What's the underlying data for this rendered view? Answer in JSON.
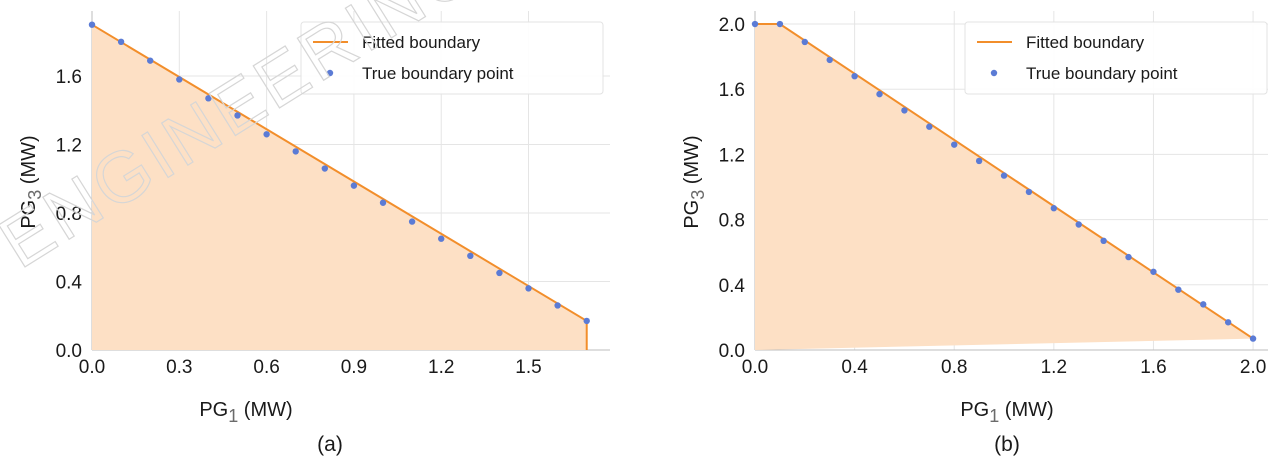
{
  "watermark": "ENGINEERING",
  "colors": {
    "fill": "#fde0c5",
    "line": "#f28e2b",
    "point": "#5b7bd5",
    "grid": "#e5e5e5",
    "axis": "#bdbdbd"
  },
  "chart_data": [
    {
      "type": "area",
      "caption": "(a)",
      "xlabel": "PG",
      "xlabel_sub": "1",
      "xlabel_unit": " (MW)",
      "ylabel": "PG",
      "ylabel_sub": "3",
      "ylabel_unit": " (MW)",
      "xlim": [
        0,
        1.78
      ],
      "ylim": [
        0,
        1.98
      ],
      "xticks": [
        "0.0",
        "0.3",
        "0.6",
        "0.9",
        "1.2",
        "1.5"
      ],
      "yticks": [
        "0.0",
        "0.4",
        "0.8",
        "1.2",
        "1.6"
      ],
      "grid": true,
      "legend_position": "top-right",
      "series": [
        {
          "name": "Fitted boundary",
          "x": [
            0.0,
            1.7,
            1.7
          ],
          "y": [
            1.9,
            0.17,
            0.0
          ]
        },
        {
          "name": "True boundary point",
          "x": [
            0.0,
            0.1,
            0.2,
            0.3,
            0.4,
            0.5,
            0.6,
            0.7,
            0.8,
            0.9,
            1.0,
            1.1,
            1.2,
            1.3,
            1.4,
            1.5,
            1.6,
            1.7
          ],
          "y": [
            1.9,
            1.8,
            1.69,
            1.58,
            1.47,
            1.37,
            1.26,
            1.16,
            1.06,
            0.96,
            0.86,
            0.75,
            0.65,
            0.55,
            0.45,
            0.36,
            0.26,
            0.17
          ]
        }
      ]
    },
    {
      "type": "area",
      "caption": "(b)",
      "xlabel": "PG",
      "xlabel_sub": "1",
      "xlabel_unit": " (MW)",
      "ylabel": "PG",
      "ylabel_sub": "3",
      "ylabel_unit": " (MW)",
      "xlim": [
        0,
        2.06
      ],
      "ylim": [
        0,
        2.08
      ],
      "xticks": [
        "0.0",
        "0.4",
        "0.8",
        "1.2",
        "1.6",
        "2.0"
      ],
      "yticks": [
        "0.0",
        "0.4",
        "0.8",
        "1.2",
        "1.6",
        "2.0"
      ],
      "grid": true,
      "legend_position": "top-right",
      "series": [
        {
          "name": "Fitted boundary",
          "x": [
            0.0,
            0.1,
            2.0
          ],
          "y": [
            2.0,
            2.0,
            0.07
          ]
        },
        {
          "name": "True boundary point",
          "x": [
            0.0,
            0.1,
            0.2,
            0.3,
            0.4,
            0.5,
            0.6,
            0.7,
            0.8,
            0.9,
            1.0,
            1.1,
            1.2,
            1.3,
            1.4,
            1.5,
            1.6,
            1.7,
            1.8,
            1.9,
            2.0
          ],
          "y": [
            2.0,
            2.0,
            1.89,
            1.78,
            1.68,
            1.57,
            1.47,
            1.37,
            1.26,
            1.16,
            1.07,
            0.97,
            0.87,
            0.77,
            0.67,
            0.57,
            0.48,
            0.37,
            0.28,
            0.17,
            0.07
          ]
        }
      ]
    }
  ]
}
